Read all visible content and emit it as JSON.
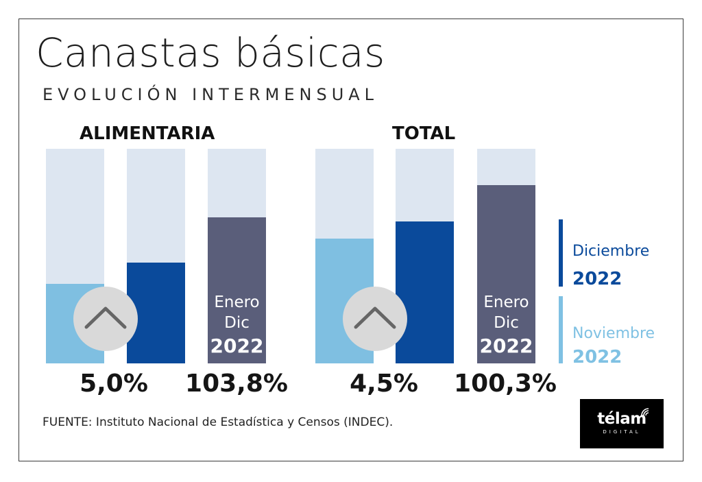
{
  "header": {
    "title": "Canastas básicas",
    "subtitle": "EVOLUCIÓN INTERMENSUAL"
  },
  "colors": {
    "background_bar": "#dde6f1",
    "noviembre": "#7fbfe1",
    "diciembre": "#0a4a9b",
    "anual": "#5a5e7a",
    "legend_dic": "#0a4a9b",
    "legend_nov": "#7fc1e3",
    "arrow_circle": "#d9d9d9",
    "arrow_stroke": "#666666"
  },
  "groups": [
    {
      "label": "ALIMENTARIA",
      "monthly_pct": "5,0%",
      "annual_pct": "103,8%",
      "annual_box": {
        "line1": "Enero",
        "line2": "Dic",
        "year": "2022"
      }
    },
    {
      "label": "TOTAL",
      "monthly_pct": "4,5%",
      "annual_pct": "100,3%",
      "annual_box": {
        "line1": "Enero",
        "line2": "Dic",
        "year": "2022"
      }
    }
  ],
  "legend": {
    "diciembre": {
      "label": "Diciembre",
      "year": "2022"
    },
    "noviembre": {
      "label": "Noviembre",
      "year": "2022"
    }
  },
  "source": "FUENTE: Instituto Nacional de Estadística y Censos (INDEC).",
  "logo": {
    "name": "télam",
    "sub": "DIGITAL"
  },
  "chart_data": {
    "type": "bar",
    "title": "Canastas básicas",
    "subtitle": "EVOLUCIÓN INTERMENSUAL",
    "categories": [
      "ALIMENTARIA",
      "TOTAL"
    ],
    "series": [
      {
        "name": "Noviembre 2022",
        "fill_fraction": [
          0.37,
          0.58
        ]
      },
      {
        "name": "Diciembre 2022",
        "values": [
          5.0,
          4.5
        ],
        "fill_fraction": [
          0.47,
          0.66
        ]
      },
      {
        "name": "Enero Dic 2022",
        "values": [
          103.8,
          100.3
        ],
        "fill_fraction": [
          0.68,
          0.83
        ]
      }
    ],
    "unit": "%",
    "legend": "right"
  }
}
